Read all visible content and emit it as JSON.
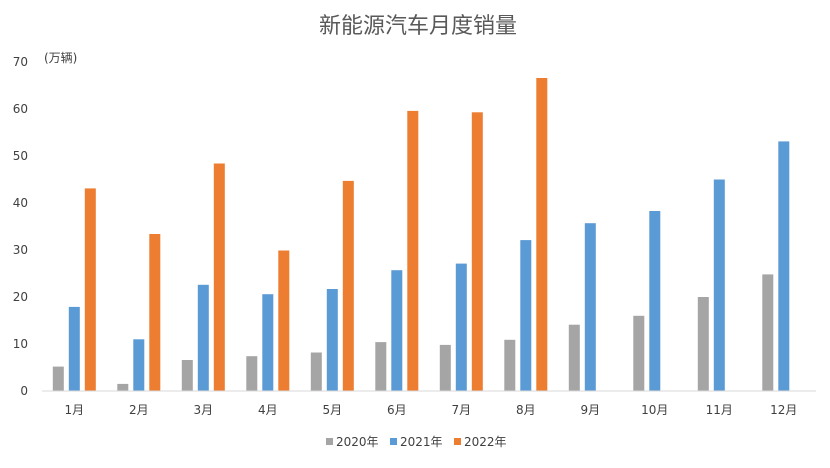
{
  "chart_data": {
    "type": "bar",
    "title": "新能源汽车月度销量",
    "y_unit_label": "(万辆)",
    "xlabel": "",
    "ylabel": "",
    "ylim": [
      0,
      70
    ],
    "yticks": [
      0,
      10,
      20,
      30,
      40,
      50,
      60,
      70
    ],
    "grid": false,
    "legend_position": "bottom",
    "categories": [
      "1月",
      "2月",
      "3月",
      "4月",
      "5月",
      "6月",
      "7月",
      "8月",
      "9月",
      "10月",
      "11月",
      "12月"
    ],
    "series": [
      {
        "name": "2020年",
        "color": "#a5a5a5",
        "values": [
          5.2,
          1.5,
          6.6,
          7.4,
          8.2,
          10.4,
          9.8,
          10.9,
          14.1,
          16.0,
          20.0,
          24.8
        ]
      },
      {
        "name": "2021年",
        "color": "#5b9bd5",
        "values": [
          17.9,
          11.0,
          22.6,
          20.6,
          21.7,
          25.7,
          27.1,
          32.1,
          35.7,
          38.3,
          45.0,
          53.1
        ]
      },
      {
        "name": "2022年",
        "color": "#ed7d31",
        "values": [
          43.1,
          33.4,
          48.4,
          29.9,
          44.7,
          59.6,
          59.3,
          66.6,
          null,
          null,
          null,
          null
        ]
      }
    ]
  }
}
